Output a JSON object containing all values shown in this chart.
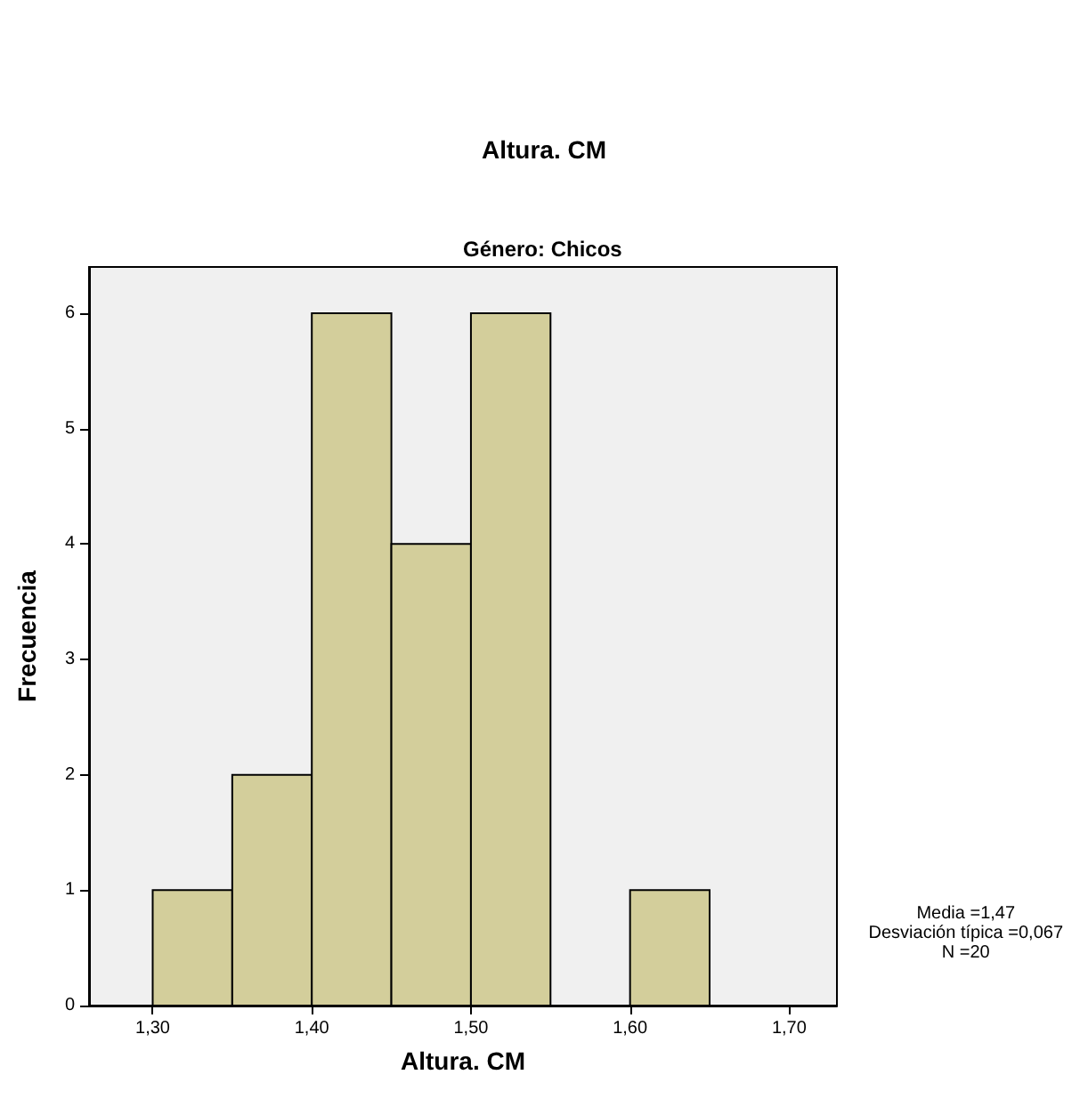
{
  "chart_data": {
    "type": "histogram",
    "title": "Altura. CM",
    "subtitle": "Género: Chicos",
    "xlabel": "Altura. CM",
    "ylabel": "Frecuencia",
    "bins": [
      1.3,
      1.35,
      1.4,
      1.45,
      1.5,
      1.55,
      1.6,
      1.65
    ],
    "values": [
      1,
      2,
      6,
      4,
      6,
      0,
      1
    ],
    "color": "#d3ce9b",
    "xlim": [
      1.26,
      1.73
    ],
    "xticks": [
      {
        "value": 1.3,
        "label": "1,30"
      },
      {
        "value": 1.4,
        "label": "1,40"
      },
      {
        "value": 1.5,
        "label": "1,50"
      },
      {
        "value": 1.6,
        "label": "1,60"
      },
      {
        "value": 1.7,
        "label": "1,70"
      }
    ],
    "ylim": [
      0,
      6.4
    ],
    "yticks": [
      0,
      1,
      2,
      3,
      4,
      5,
      6
    ],
    "grid": false,
    "annotations": [
      "Media =1,47",
      "Desviación típica =0,067",
      "N =20"
    ]
  }
}
